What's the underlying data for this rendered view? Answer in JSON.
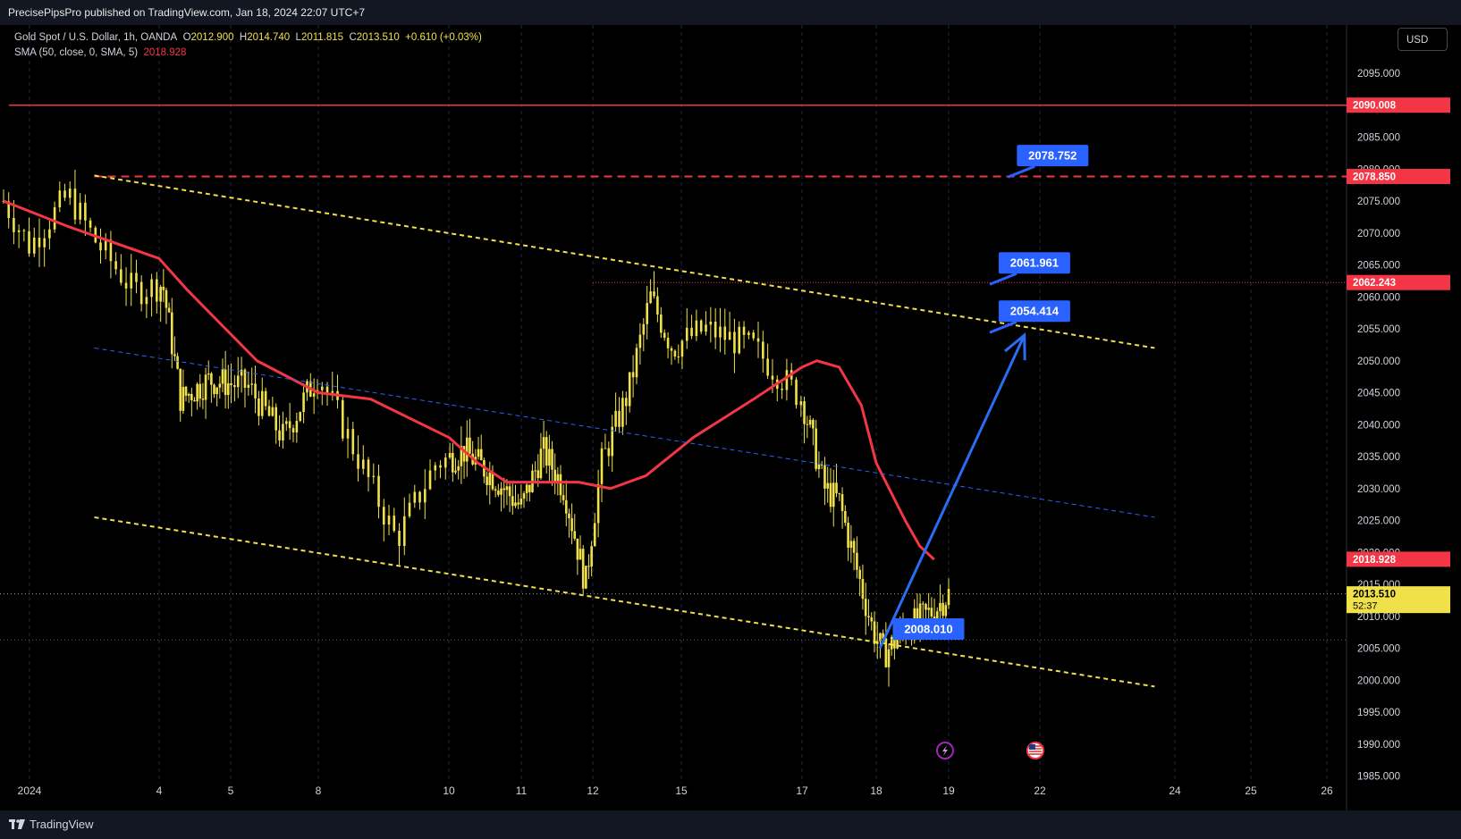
{
  "header": {
    "published": "PrecisePipsPro published on TradingView.com, Jan 18, 2024 22:07 UTC+7"
  },
  "legend": {
    "symbol": "Gold Spot / U.S. Dollar, 1h, OANDA",
    "o_label": "O",
    "o_value": "2012.900",
    "h_label": "H",
    "h_value": "2014.740",
    "l_label": "L",
    "l_value": "2011.815",
    "c_label": "C",
    "c_value": "2013.510",
    "change": "+0.610 (+0.03%)",
    "sma_label": "SMA (50, close, 0, SMA, 5)",
    "sma_value": "2018.928"
  },
  "currency_button": "USD",
  "footer": {
    "brand": "TradingView"
  },
  "colors": {
    "background": "#000000",
    "candle": "#f0e14a",
    "sma": "#f23645",
    "resistance": "#f23645",
    "trendline": "#f0e14a",
    "midline": "#2962ff",
    "arrow": "#2a6df4",
    "callout": "#2962ff",
    "axis_text": "#d1d4dc"
  },
  "chart_data": {
    "type": "candlestick",
    "title": "Gold Spot / U.S. Dollar, 1h, OANDA",
    "ylim": [
      1982,
      2099
    ],
    "y_ticks": [
      "2095.000",
      "2090.000",
      "2085.000",
      "2080.000",
      "2075.000",
      "2070.000",
      "2065.000",
      "2060.000",
      "2055.000",
      "2050.000",
      "2045.000",
      "2040.000",
      "2035.000",
      "2030.000",
      "2025.000",
      "2020.000",
      "2015.000",
      "2010.000",
      "2005.000",
      "2000.000",
      "1995.000",
      "1990.000",
      "1985.000"
    ],
    "x_ticks": [
      {
        "label": "2024",
        "x": 0
      },
      {
        "label": "4",
        "x": 1
      },
      {
        "label": "5",
        "x": 2
      },
      {
        "label": "8",
        "x": 3
      },
      {
        "label": "10",
        "x": 4
      },
      {
        "label": "11",
        "x": 5
      },
      {
        "label": "12",
        "x": 6
      },
      {
        "label": "15",
        "x": 7
      },
      {
        "label": "17",
        "x": 8
      },
      {
        "label": "18",
        "x": 9
      },
      {
        "label": "19",
        "x": 10
      },
      {
        "label": "22",
        "x": 11
      },
      {
        "label": "24",
        "x": 12
      },
      {
        "label": "25",
        "x": 13
      },
      {
        "label": "26",
        "x": 14
      }
    ],
    "price_path": [
      [
        -0.2,
        2075
      ],
      [
        0,
        2068
      ],
      [
        0.3,
        2076
      ],
      [
        0.5,
        2069
      ],
      [
        0.8,
        2061
      ],
      [
        1.05,
        2062
      ],
      [
        1.3,
        2044
      ],
      [
        1.7,
        2047
      ],
      [
        2.2,
        2046
      ],
      [
        2.6,
        2038
      ],
      [
        3.0,
        2048
      ],
      [
        3.3,
        2035
      ],
      [
        3.6,
        2022
      ],
      [
        3.9,
        2034
      ],
      [
        4.2,
        2036
      ],
      [
        4.6,
        2032
      ],
      [
        5.0,
        2027
      ],
      [
        5.3,
        2036
      ],
      [
        5.6,
        2030
      ],
      [
        5.9,
        2015
      ],
      [
        6.1,
        2034
      ],
      [
        6.4,
        2045
      ],
      [
        6.65,
        2060
      ],
      [
        6.9,
        2052
      ],
      [
        7.2,
        2055
      ],
      [
        7.6,
        2052
      ],
      [
        8.0,
        2044
      ],
      [
        8.3,
        2030
      ],
      [
        8.5,
        2028
      ],
      [
        8.7,
        2019
      ],
      [
        8.95,
        2008
      ],
      [
        9.1,
        2004
      ],
      [
        9.4,
        2008
      ],
      [
        9.8,
        2011
      ],
      [
        10.0,
        2013.5
      ]
    ],
    "sma_path": [
      [
        -0.2,
        2075
      ],
      [
        0.3,
        2071
      ],
      [
        1.0,
        2066
      ],
      [
        1.4,
        2061
      ],
      [
        2.3,
        2050
      ],
      [
        3.0,
        2045
      ],
      [
        3.4,
        2044
      ],
      [
        4.0,
        2038
      ],
      [
        4.4,
        2034
      ],
      [
        4.8,
        2031
      ],
      [
        5.3,
        2031
      ],
      [
        5.8,
        2031
      ],
      [
        6.2,
        2030
      ],
      [
        6.6,
        2032
      ],
      [
        7.1,
        2038
      ],
      [
        7.6,
        2044
      ],
      [
        8.0,
        2049
      ],
      [
        8.2,
        2050
      ],
      [
        8.5,
        2049
      ],
      [
        8.8,
        2043
      ],
      [
        9.0,
        2034
      ],
      [
        9.4,
        2025
      ],
      [
        9.6,
        2021
      ],
      [
        9.8,
        2018.9
      ]
    ],
    "current_price": 2013.51,
    "countdown": "52:37",
    "sma_last": 2018.928,
    "horizontal_levels": [
      {
        "value": 2090.008,
        "label": "2090.008",
        "style": "solid"
      },
      {
        "value": 2078.85,
        "label": "2078.850",
        "style": "dashed"
      },
      {
        "value": 2062.243,
        "label": "2062.243",
        "style": "dotted"
      }
    ],
    "channel": {
      "upper": [
        [
          0.5,
          2079
        ],
        [
          11.85,
          2052
        ]
      ],
      "middle": [
        [
          0.5,
          2052
        ],
        [
          11.85,
          2025.5
        ]
      ],
      "lower": [
        [
          0.5,
          2025.5
        ],
        [
          11.85,
          1999
        ]
      ]
    },
    "projection_arrow": {
      "from": [
        9.05,
        2005
      ],
      "to": [
        10.83,
        2054
      ]
    },
    "callouts": [
      {
        "label": "2078.752",
        "value": 2078.752,
        "x": 10.65
      },
      {
        "label": "2061.961",
        "value": 2061.961,
        "x": 10.45
      },
      {
        "label": "2054.414",
        "value": 2054.414,
        "x": 10.45
      },
      {
        "label": "2008.010",
        "value": 2008.01,
        "x": 9.45
      }
    ],
    "event_icons": [
      {
        "name": "lightning-icon",
        "x": 9.95
      },
      {
        "name": "us-flag-icon",
        "x": 10.95
      }
    ]
  }
}
